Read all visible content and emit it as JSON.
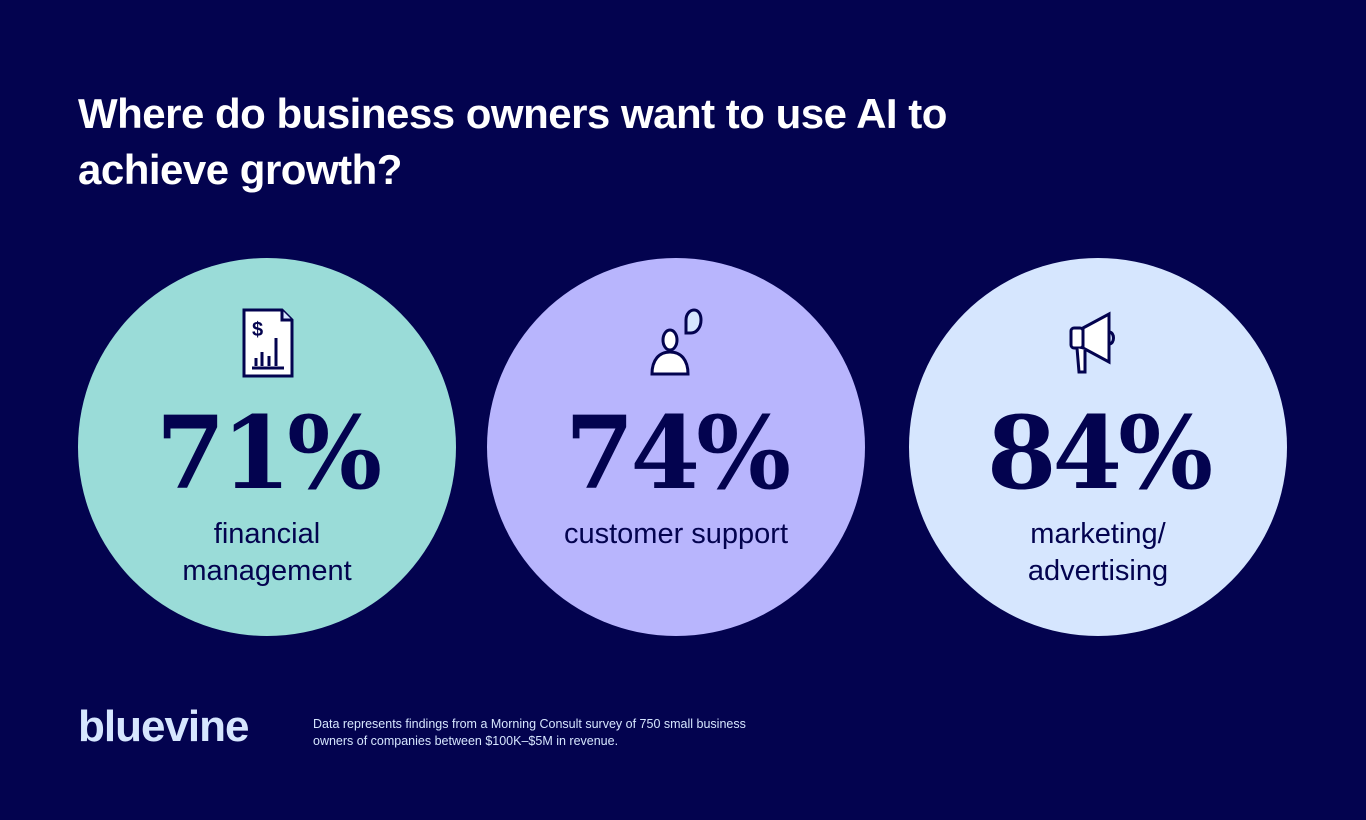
{
  "title": "Where do business owners want to use AI to achieve growth?",
  "stats": [
    {
      "value": "71%",
      "label": "financial management",
      "icon": "financial-report-icon",
      "color": "#9adcd8"
    },
    {
      "value": "74%",
      "label": "customer support",
      "icon": "person-speech-icon",
      "color": "#b8b5fd"
    },
    {
      "value": "84%",
      "label": "marketing/ advertising",
      "icon": "megaphone-icon",
      "color": "#d6e6fe"
    }
  ],
  "footer": {
    "logo": "bluevine",
    "note": "Data represents findings from a Morning Consult survey of 750 small business owners of companies between $100K–$5M in revenue."
  }
}
